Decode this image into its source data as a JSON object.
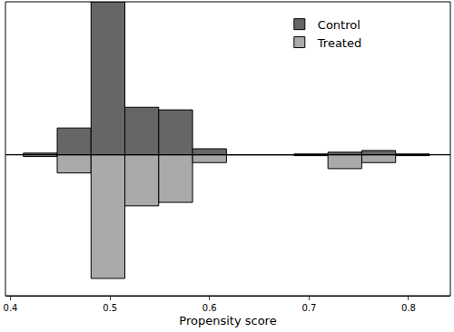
{
  "chart_data": {
    "type": "histogram",
    "x_label": "Propensity score",
    "bins": [
      0.413,
      0.447,
      0.481,
      0.515,
      0.549,
      0.583,
      0.617,
      0.651,
      0.685,
      0.719,
      0.753,
      0.787,
      0.821
    ],
    "series": [
      {
        "name": "Control",
        "color": "#666666",
        "values": [
          2,
          31,
          177,
          55,
          52,
          7,
          0,
          0,
          1,
          3,
          5,
          1
        ]
      },
      {
        "name": "Treated",
        "color": "#aaaaaa",
        "values": [
          2,
          21,
          143,
          59,
          55,
          9,
          0,
          0,
          1,
          16,
          9,
          1
        ],
        "axis": "y2"
      }
    ],
    "xlim": [
      0.395,
      0.842
    ],
    "xticks": [
      0.4,
      0.5,
      0.6,
      0.7,
      0.8
    ],
    "ylim": [
      0,
      177
    ],
    "y2lim": [
      0,
      163
    ],
    "tick_labels": "x",
    "legend": "top right",
    "grid": false
  }
}
